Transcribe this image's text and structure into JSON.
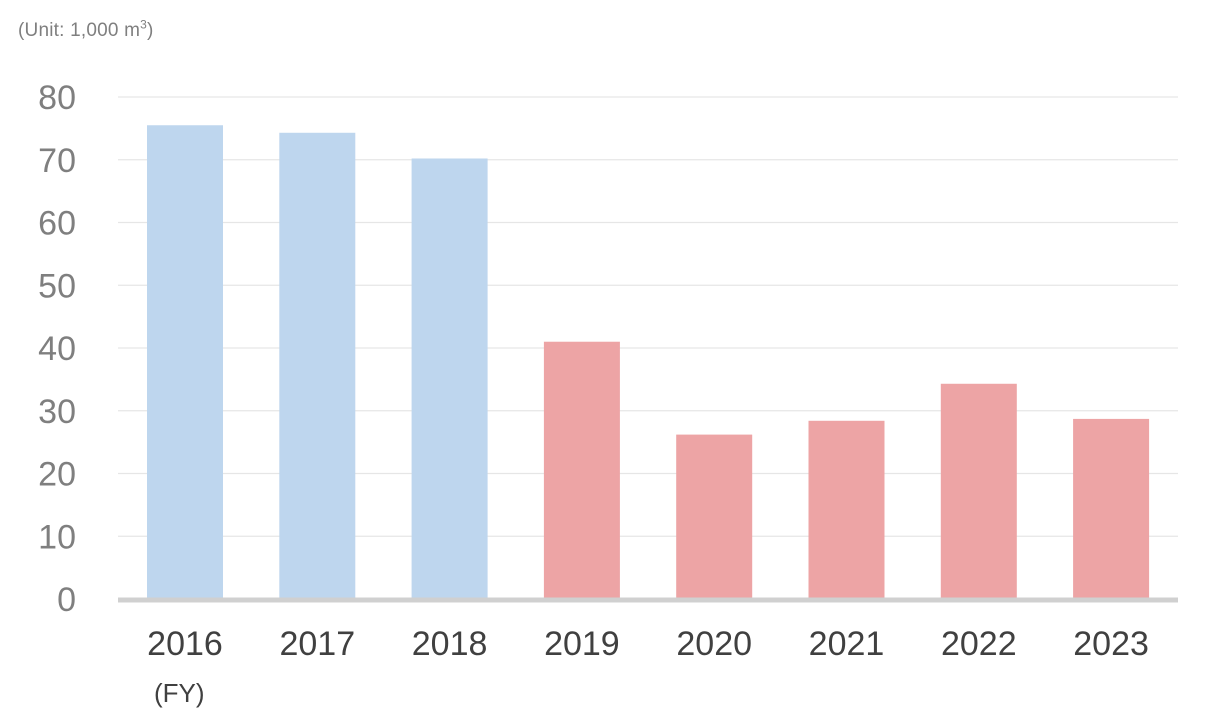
{
  "unit": {
    "prefix": "(Unit: 1,000 m",
    "exponent": "3",
    "suffix": ")"
  },
  "fy_label": "(FY)",
  "colors": {
    "bar_before": "#bed6ee",
    "bar_after": "#eda4a5",
    "gridline": "#e6e6e6",
    "axis_line": "#d0d0d0",
    "y_tick_text": "#7f7f7f",
    "x_tick_text": "#404040"
  },
  "chart_data": {
    "type": "bar",
    "categories": [
      "2016",
      "2017",
      "2018",
      "2019",
      "2020",
      "2021",
      "2022",
      "2023"
    ],
    "values": [
      75.5,
      74.3,
      70.2,
      41.0,
      26.2,
      28.4,
      34.3,
      28.7
    ],
    "bar_color_groups": [
      "before",
      "before",
      "before",
      "after",
      "after",
      "after",
      "after",
      "after"
    ],
    "y_ticks": [
      "0",
      "10",
      "20",
      "30",
      "40",
      "50",
      "60",
      "70",
      "80"
    ],
    "ylim": [
      0,
      80
    ],
    "grid": true,
    "legend": "none",
    "title": "",
    "xlabel": "",
    "ylabel": ""
  }
}
